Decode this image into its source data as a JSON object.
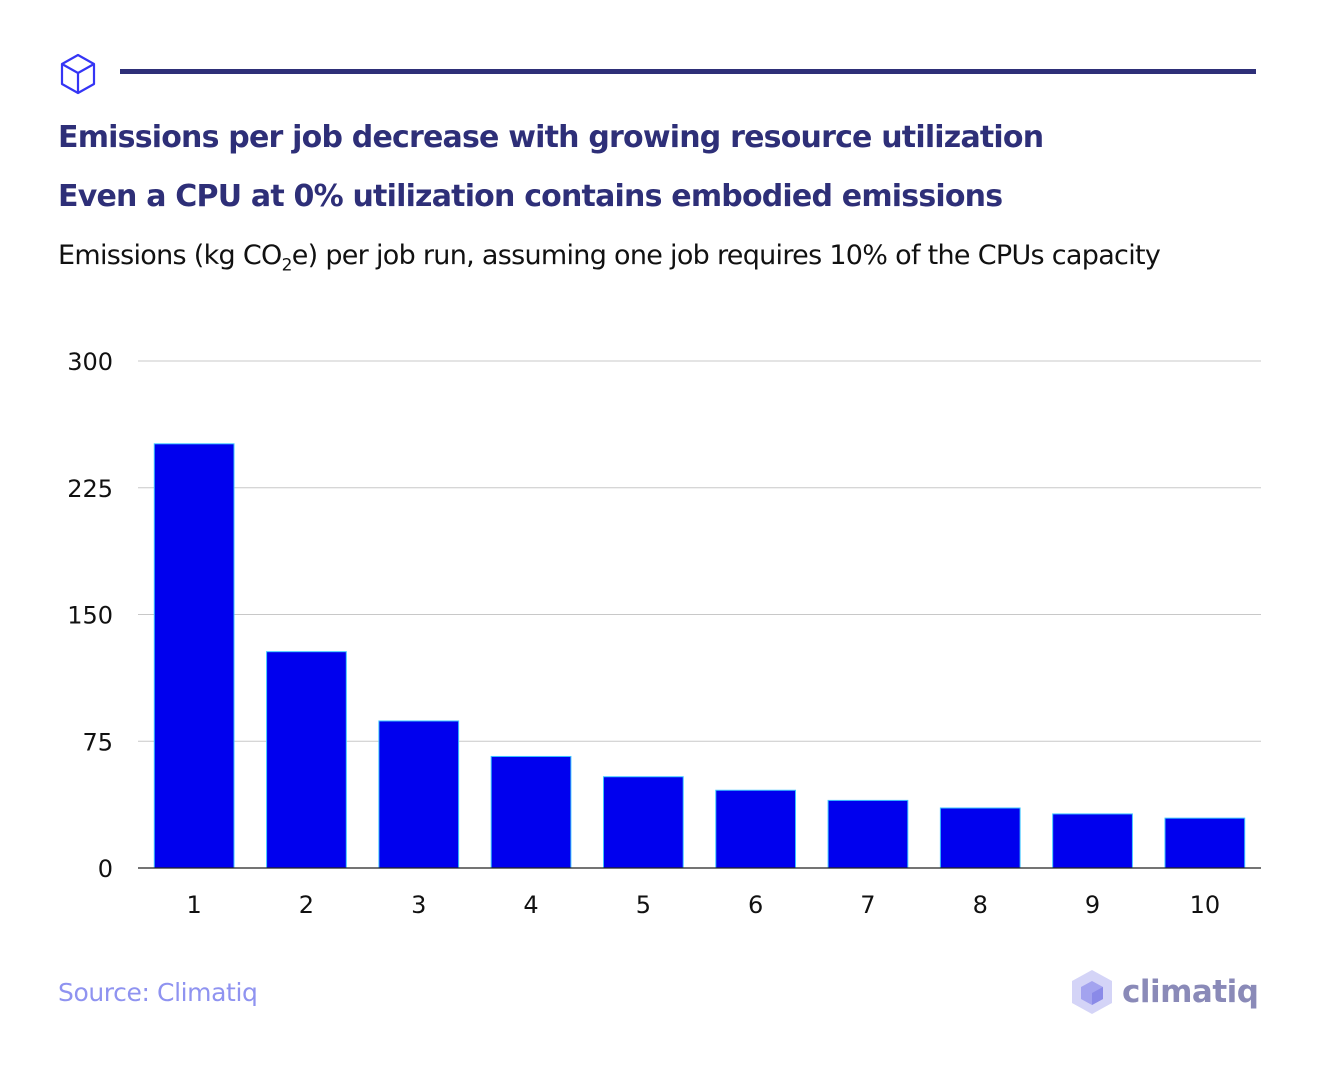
{
  "header": {
    "title": "Emissions per job decrease with growing resource utilization",
    "subtitle": "Even a CPU at 0% utilization contains embodied emissions",
    "description_pre": "Emissions (kg CO",
    "description_sub": "2",
    "description_post": "e) per job run, assuming one job requires 10% of the CPUs capacity",
    "icon": "cube-icon",
    "accent_color": "#2e2f78"
  },
  "footer": {
    "source": "Source: Climatiq",
    "logo_text": "climatiq"
  },
  "chart_data": {
    "type": "bar",
    "title": "Emissions per job decrease with growing resource utilization",
    "subtitle": "Even a CPU at 0% utilization contains embodied emissions",
    "categories": [
      "1",
      "2",
      "3",
      "4",
      "5",
      "6",
      "7",
      "8",
      "9",
      "10"
    ],
    "values": [
      251,
      128,
      87,
      66,
      54,
      46,
      40,
      35.5,
      32,
      29.5
    ],
    "ylim": [
      0,
      300
    ],
    "yticks": [
      "0",
      "75",
      "150",
      "225",
      "300"
    ],
    "grid": true,
    "bar_color": "#0000ee",
    "bar_edge_color": "#3ec6ff"
  }
}
